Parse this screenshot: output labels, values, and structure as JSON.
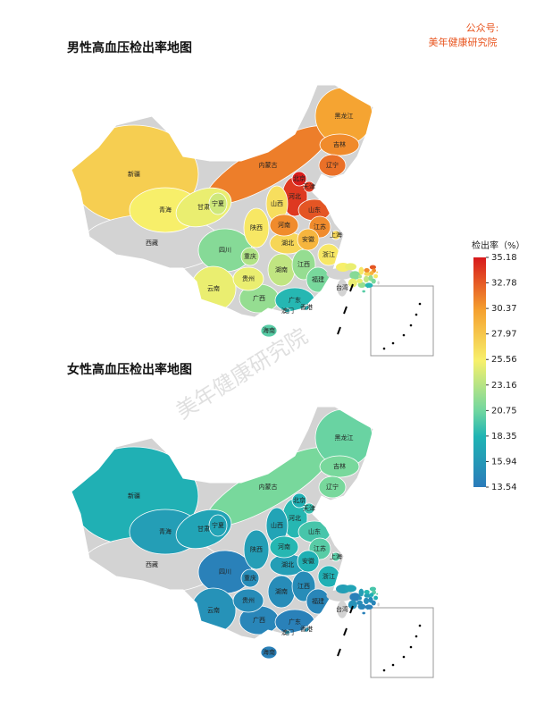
{
  "header": {
    "line1": "公众号:",
    "line2": "美年健康研究院"
  },
  "watermark": "美年健康研究院",
  "provinces": [
    "新疆",
    "西藏",
    "青海",
    "甘肃",
    "内蒙古",
    "宁夏",
    "陕西",
    "山西",
    "北京",
    "天津",
    "河北",
    "山东",
    "河南",
    "江苏",
    "安徽",
    "上海",
    "浙江",
    "湖北",
    "湖南",
    "江西",
    "福建",
    "广东",
    "广西",
    "海南",
    "贵州",
    "云南",
    "四川",
    "重庆",
    "辽宁",
    "吉林",
    "黑龙江",
    "台湾",
    "香港",
    "澳门"
  ],
  "maps": [
    {
      "title": "男性高血压检出率地图",
      "values": [
        27.5,
        null,
        25.5,
        25,
        31.5,
        24,
        26,
        26.5,
        35,
        34,
        34,
        33,
        31,
        31,
        29,
        27,
        26,
        27,
        23.5,
        22,
        21,
        18.5,
        22,
        20,
        25,
        25,
        21.5,
        23,
        32,
        31,
        30,
        null,
        18,
        18
      ]
    },
    {
      "title": "女性高血压检出率地图",
      "values": [
        18,
        null,
        16.5,
        17,
        21,
        17,
        16.5,
        17,
        18,
        19,
        18.5,
        19.5,
        18.5,
        20,
        18,
        20,
        18,
        16.5,
        15,
        15,
        14.5,
        14,
        14.5,
        14,
        15,
        15.5,
        14,
        15,
        21,
        21,
        20.5,
        null,
        16,
        16
      ]
    }
  ],
  "colorbar": {
    "title": "检出率（%）",
    "ticks": [
      35.18,
      32.78,
      30.37,
      27.97,
      25.56,
      23.16,
      20.75,
      18.35,
      15.94,
      13.54
    ]
  }
}
